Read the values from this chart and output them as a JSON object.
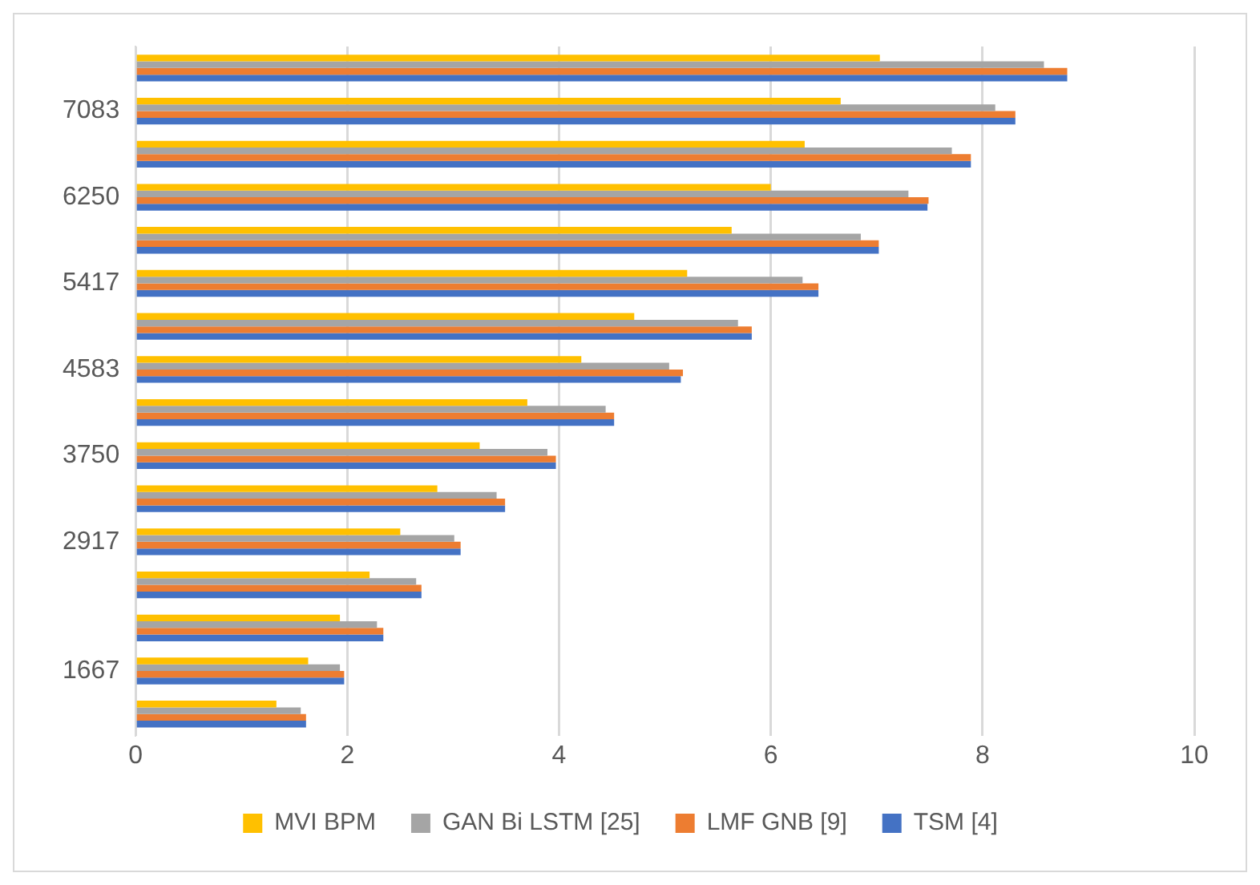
{
  "chart_data": {
    "type": "bar",
    "orientation": "horizontal",
    "categories": [
      null,
      "7083",
      null,
      "6250",
      null,
      "5417",
      null,
      "4583",
      null,
      "3750",
      null,
      "2917",
      null,
      null,
      "1667",
      null
    ],
    "series": [
      {
        "name": "MVI BPM",
        "color": "#ffc000",
        "values": [
          7.03,
          6.66,
          6.32,
          6.0,
          5.63,
          5.21,
          4.71,
          4.21,
          3.7,
          3.25,
          2.85,
          2.5,
          2.21,
          1.93,
          1.63,
          1.33
        ]
      },
      {
        "name": "GAN Bi LSTM [25]",
        "color": "#a5a5a5",
        "values": [
          8.58,
          8.12,
          7.71,
          7.3,
          6.85,
          6.3,
          5.69,
          5.04,
          4.44,
          3.89,
          3.41,
          3.01,
          2.65,
          2.28,
          1.93,
          1.56
        ]
      },
      {
        "name": "LMF GNB [9]",
        "color": "#ed7d31",
        "values": [
          8.8,
          8.31,
          7.89,
          7.49,
          7.02,
          6.45,
          5.82,
          5.17,
          4.52,
          3.97,
          3.49,
          3.07,
          2.7,
          2.34,
          1.97,
          1.61
        ]
      },
      {
        "name": "TSM [4]",
        "color": "#4472c4",
        "values": [
          8.8,
          8.31,
          7.89,
          7.48,
          7.02,
          6.45,
          5.82,
          5.15,
          4.52,
          3.97,
          3.49,
          3.07,
          2.7,
          2.34,
          1.97,
          1.61
        ]
      }
    ],
    "xlim": [
      0,
      10
    ],
    "xticks": [
      0,
      2,
      4,
      6,
      8,
      10
    ],
    "grid": "x",
    "legend": "bottom"
  }
}
